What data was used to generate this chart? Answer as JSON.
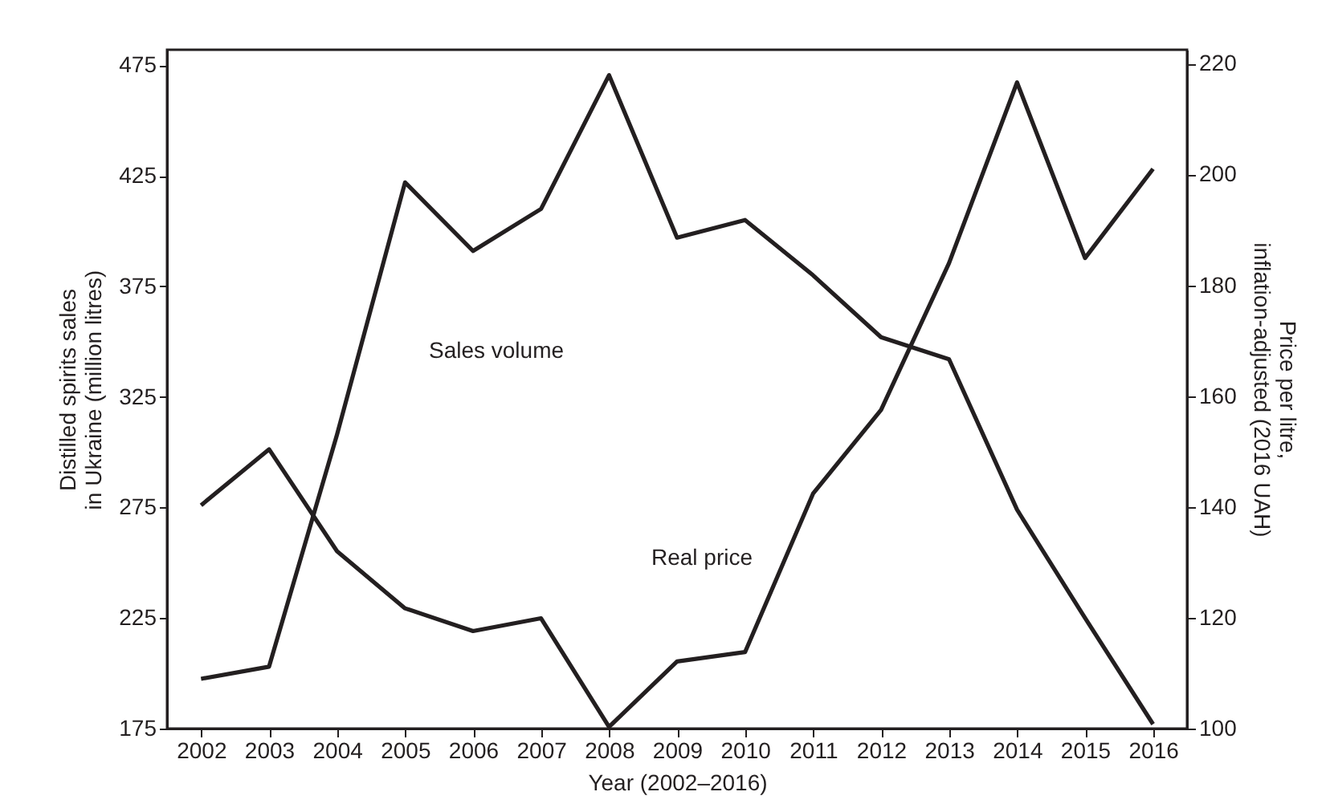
{
  "chart_data": {
    "type": "line",
    "xlabel": "Year (2002–2016)",
    "ylabel": "Distilled spirits sales\nin Ukraine (million litres)",
    "y2label": "Price per litre,\ninflation-adjusted (2016 UAH)",
    "x": [
      2002,
      2003,
      2004,
      2005,
      2006,
      2007,
      2008,
      2009,
      2010,
      2011,
      2012,
      2013,
      2014,
      2015,
      2016
    ],
    "xlim": [
      2001.5,
      2016.5
    ],
    "xticks": [
      2002,
      2003,
      2004,
      2005,
      2006,
      2007,
      2008,
      2009,
      2010,
      2011,
      2012,
      2013,
      2014,
      2015,
      2016
    ],
    "ylim": [
      175,
      482
    ],
    "yticks": [
      175,
      225,
      275,
      325,
      375,
      425,
      475
    ],
    "y2lim": [
      100,
      222.5
    ],
    "y2ticks": [
      100,
      120,
      140,
      160,
      180,
      200,
      220
    ],
    "series": [
      {
        "color": "#231f20",
        "values": [
          197.5,
          203,
          308,
          422,
          391,
          410,
          470.5,
          397,
          405,
          380,
          352,
          342,
          274,
          225,
          177
        ]
      },
      {
        "color": "#231f20",
        "axis": "y2",
        "values": [
          140.3,
          150.4,
          132,
          121.7,
          117.6,
          119.9,
          100.3,
          112.1,
          113.8,
          142.4,
          157.5,
          184,
          216.6,
          184.9,
          201
        ]
      }
    ],
    "annotations": [
      "Sales volume",
      "Real price"
    ],
    "grid": false,
    "marker": "none",
    "line_style": "solid"
  }
}
